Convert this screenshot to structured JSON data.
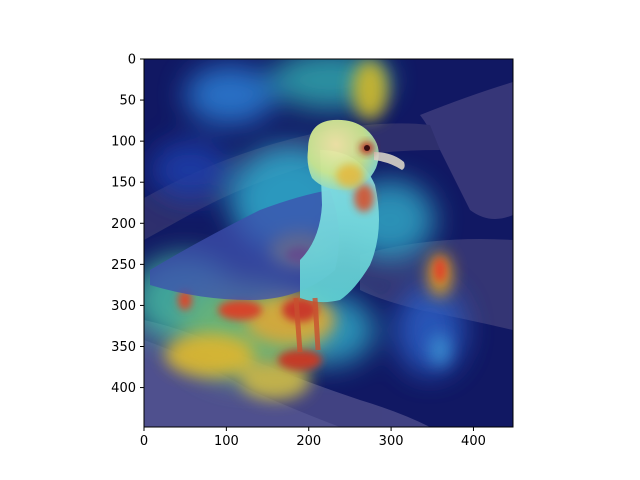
{
  "figure": {
    "image_subject": "seagull standing on a rock with a heatmap overlay",
    "colormap": "jet",
    "background_color": "#ffffff",
    "axes": {
      "x_range": [
        0,
        448
      ],
      "y_range": [
        448,
        0
      ],
      "x_ticks": [
        "0",
        "100",
        "200",
        "300",
        "400"
      ],
      "y_ticks": [
        "0",
        "50",
        "100",
        "150",
        "200",
        "250",
        "300",
        "350",
        "400"
      ]
    }
  }
}
